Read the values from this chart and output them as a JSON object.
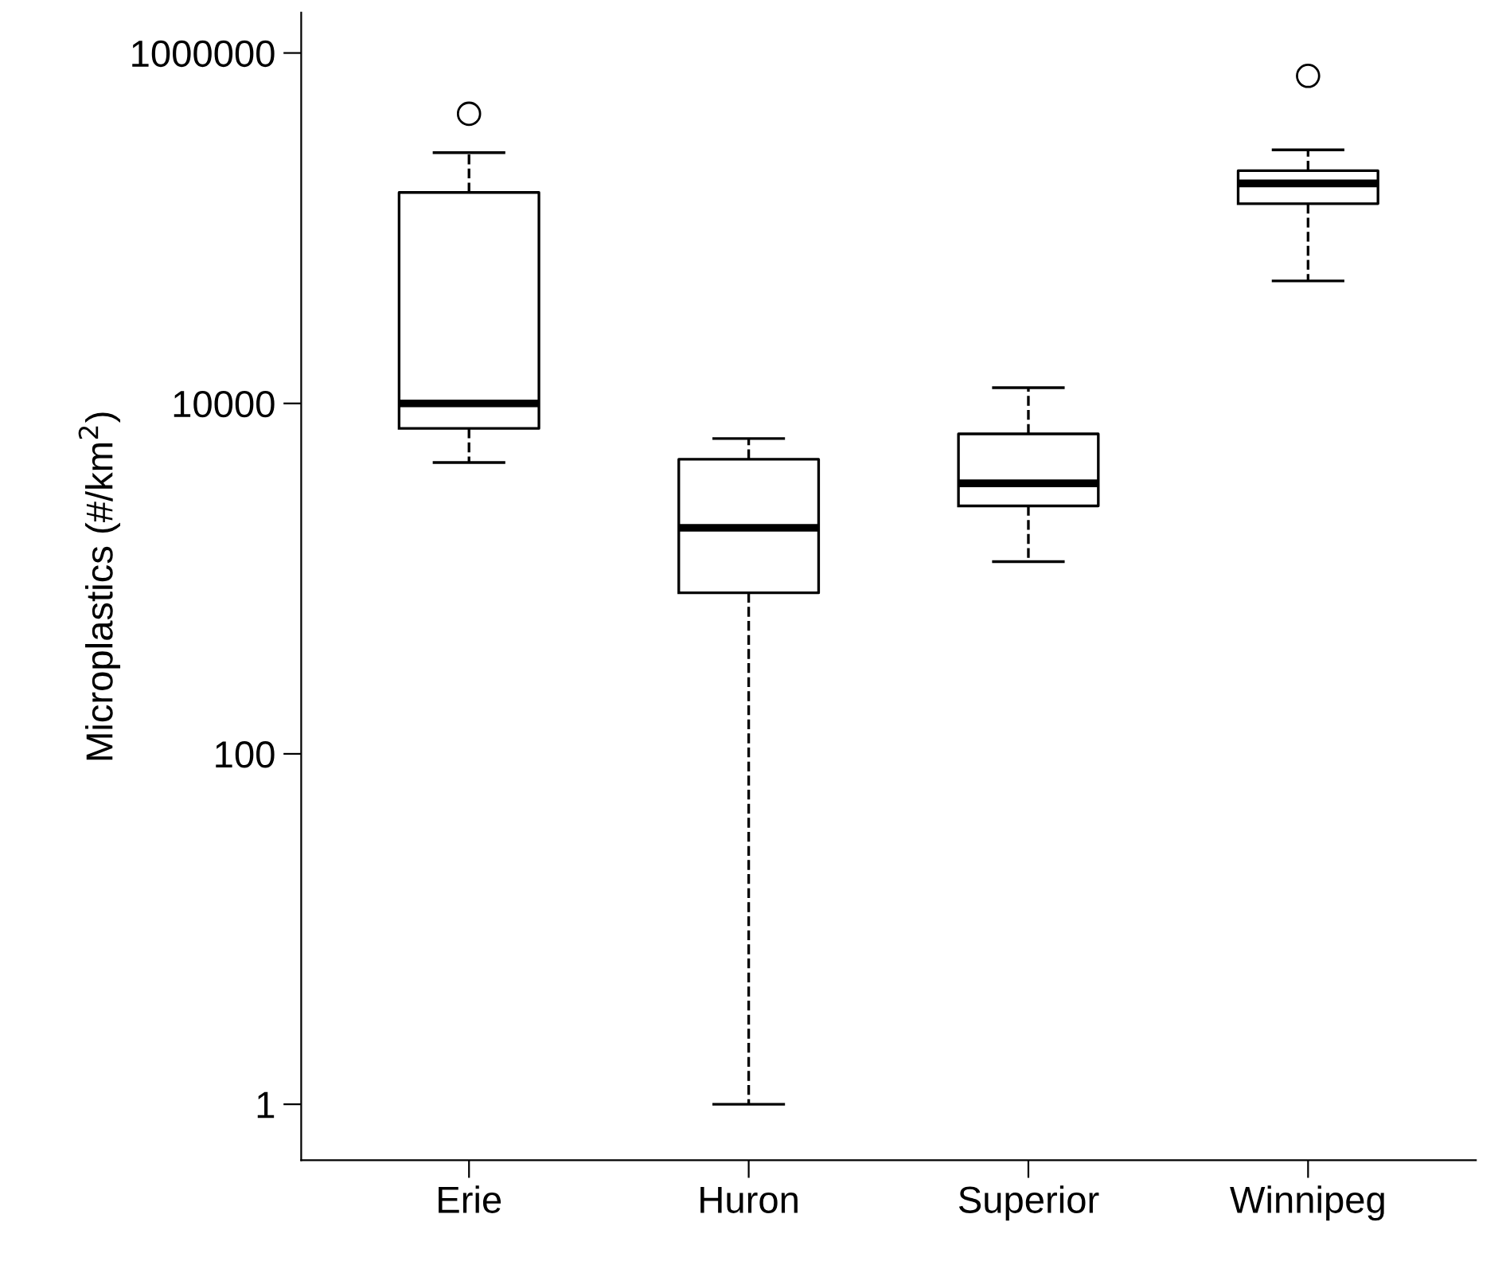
{
  "chart_data": {
    "type": "box",
    "ylabel": "Microplastics (#/km$^{2}$)",
    "categories": [
      "Erie",
      "Huron",
      "Superior",
      "Winnipeg"
    ],
    "boxes": [
      {
        "low": 4600,
        "q1": 7200,
        "median": 10000,
        "q3": 160000,
        "high": 270000,
        "outliers": [
          450000
        ]
      },
      {
        "low": 1,
        "q1": 830,
        "median": 1950,
        "q3": 4800,
        "high": 6300
      },
      {
        "low": 1250,
        "q1": 2600,
        "median": 3500,
        "q3": 6700,
        "high": 12300
      },
      {
        "low": 50000,
        "q1": 138000,
        "median": 180000,
        "q3": 213000,
        "high": 280000,
        "outliers": [
          740000
        ]
      }
    ],
    "log": "y",
    "ylim": [
      0.48,
      1700000
    ],
    "yticks": [
      1,
      100,
      10000,
      1000000
    ],
    "grid": false,
    "line_style": "dashed",
    "color": "#000000"
  }
}
